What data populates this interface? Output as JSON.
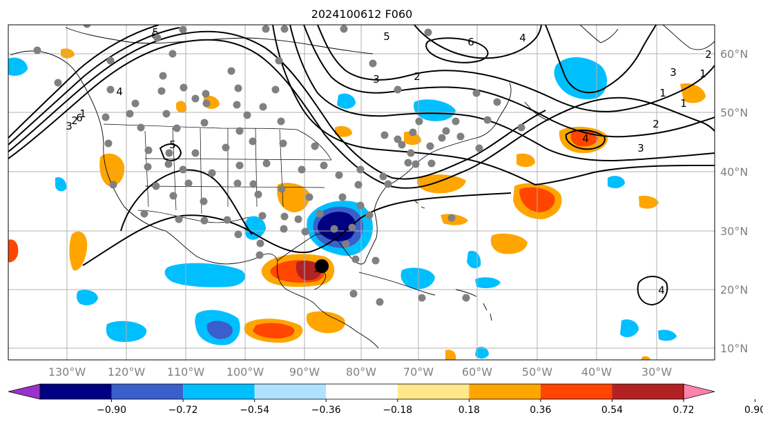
{
  "title": "2024100612 F060",
  "axes": {
    "lon_labels": [
      "130°W",
      "120°W",
      "110°W",
      "100°W",
      "90°W",
      "80°W",
      "70°W",
      "60°W",
      "50°W",
      "40°W",
      "30°W"
    ],
    "lat_labels": [
      "60°N",
      "50°N",
      "40°N",
      "30°N",
      "20°N",
      "10°N"
    ]
  },
  "colorbar": {
    "labels": [
      "−0.90",
      "−0.72",
      "−0.54",
      "−0.36",
      "−0.18",
      "0.18",
      "0.36",
      "0.54",
      "0.72",
      "0.90"
    ],
    "colors": [
      "#9932cc",
      "#000080",
      "#3a5fcd",
      "#00bfff",
      "#b0e2ff",
      "#ffffff",
      "#ffe88a",
      "#ffa500",
      "#ff4500",
      "#b22222",
      "#ff82ab"
    ]
  },
  "contour_labels": [
    "6",
    "5",
    "1",
    "2",
    "3",
    "4",
    "5",
    "6",
    "4",
    "3",
    "2",
    "1",
    "4",
    "3",
    "2",
    "1",
    "1",
    "2",
    "3",
    "4",
    "5",
    "6"
  ],
  "storm_marker": {
    "label": "storm-center"
  },
  "colors": {
    "grid": "#b0b0b0",
    "coast": "#000000",
    "contour": "#000000",
    "station": "#808080"
  }
}
